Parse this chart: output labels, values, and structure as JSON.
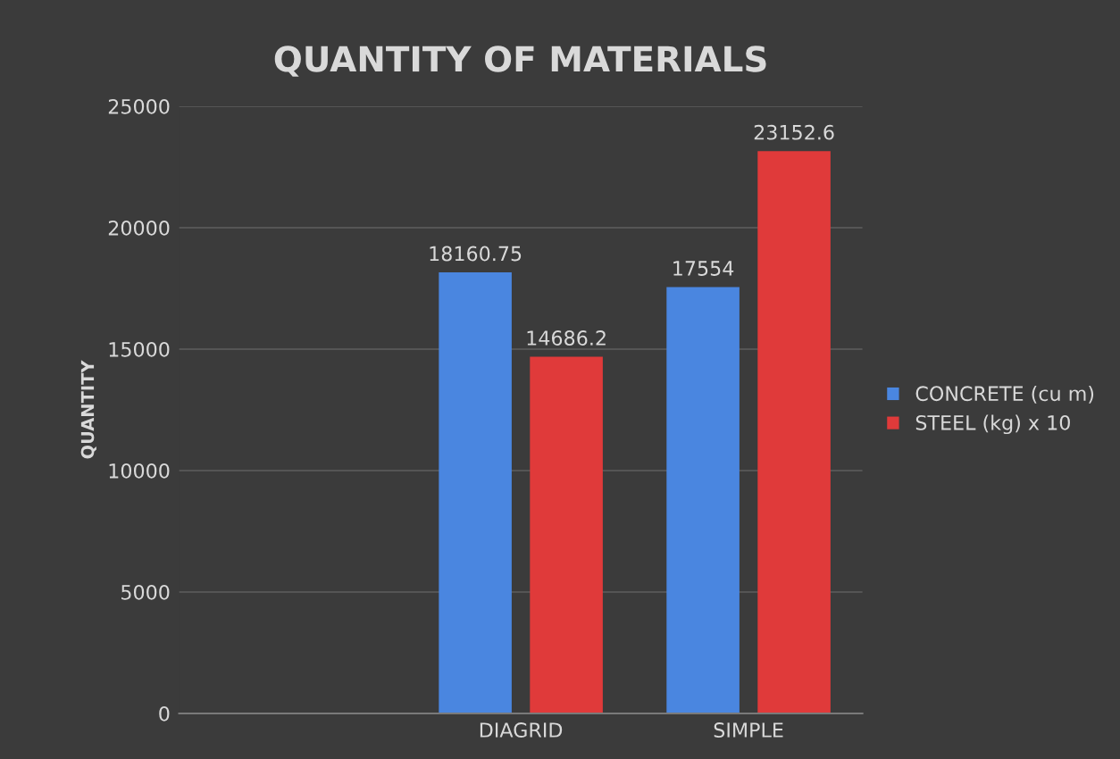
{
  "chart_data": {
    "type": "bar",
    "title": "QUANTITY OF MATERIALS",
    "ylabel": "QUANTITY",
    "categories": [
      null,
      "DIAGRID",
      "SIMPLE"
    ],
    "series": [
      {
        "name": "CONCRETE (cu m)",
        "color": "#4a86e0",
        "values": [
          null,
          18160.75,
          17554
        ]
      },
      {
        "name": "STEEL (kg) x 10",
        "color": "#e03a3a",
        "values": [
          null,
          14686.2,
          23152.6
        ]
      }
    ],
    "ylim": [
      0,
      25000
    ],
    "yticks": [
      0,
      5000,
      10000,
      15000,
      20000,
      25000
    ],
    "grid": "y",
    "legend": "right",
    "data_labels": true
  }
}
